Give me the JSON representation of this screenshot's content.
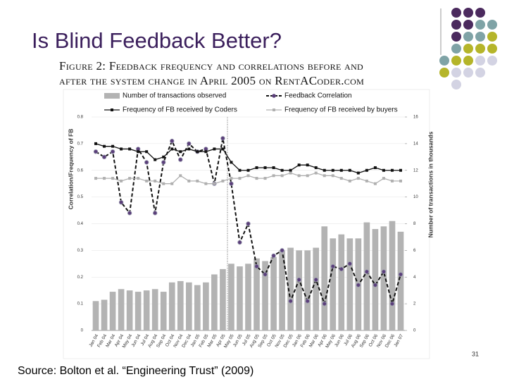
{
  "slide_title": "Is Blind Feedback Better?",
  "caption": [
    "Figure 2: Feedback frequency and correlations before and",
    "after the system change in April 2005 on RentACoder.com"
  ],
  "source": "Source: Bolton et al. “Engineering Trust” (2009)",
  "page_number": "31",
  "chart_data": {
    "type": "bar-line",
    "y_label": "Correlation/Frequency of FB",
    "y2_label": "Number of transactions in thousands",
    "categories": [
      "Jan 04",
      "Feb 04",
      "Mar 04",
      "Apr 04",
      "May 04",
      "Jun 04",
      "Jul 04",
      "Aug 04",
      "Sep 04",
      "Oct 04",
      "Nov 04",
      "Dec 04",
      "Jan 05",
      "Feb 05",
      "Mar 05",
      "Apr 05",
      "May 05",
      "Jun 05",
      "Jul 05",
      "Aug 05",
      "Sep 05",
      "Oct 05",
      "Nov 05",
      "Dec 05",
      "Jan 06",
      "Feb 06",
      "Mar 06",
      "Apr 06",
      "May 06",
      "Jun 06",
      "Jul 06",
      "Aug 06",
      "Sep 06",
      "Oct 06",
      "Nov 06",
      "Dec 06",
      "Jan 07"
    ],
    "series": [
      {
        "name": "Number of transactions observed",
        "type": "bar",
        "axis": "y2",
        "color": "#b3b3b3",
        "values": [
          2.2,
          2.3,
          2.9,
          3.1,
          3.0,
          2.9,
          3.0,
          3.1,
          2.9,
          3.6,
          3.7,
          3.6,
          3.4,
          3.6,
          4.2,
          4.6,
          5.0,
          4.8,
          5.0,
          5.4,
          5.2,
          5.5,
          6.0,
          6.2,
          6.0,
          6.0,
          6.2,
          7.8,
          6.9,
          7.2,
          6.9,
          6.9,
          8.1,
          7.6,
          7.8,
          8.2,
          7.4
        ]
      },
      {
        "name": "Feedback Correlation",
        "type": "line",
        "axis": "y",
        "color": "#111111",
        "marker": "circle",
        "marker_color": "#5b3f7a",
        "dashed": true,
        "values": [
          0.67,
          0.65,
          0.67,
          0.48,
          0.44,
          0.68,
          0.63,
          0.44,
          0.63,
          0.71,
          0.64,
          0.7,
          0.67,
          0.68,
          0.55,
          0.72,
          0.55,
          0.33,
          0.4,
          0.24,
          0.21,
          0.28,
          0.3,
          0.11,
          0.19,
          0.11,
          0.19,
          0.1,
          0.24,
          0.23,
          0.25,
          0.17,
          0.22,
          0.17,
          0.22,
          0.1,
          0.21
        ]
      },
      {
        "name": "Frequency of FB received by Coders",
        "type": "line",
        "axis": "y",
        "color": "#111111",
        "marker": "square",
        "values": [
          0.7,
          0.69,
          0.69,
          0.68,
          0.68,
          0.67,
          0.67,
          0.64,
          0.65,
          0.68,
          0.67,
          0.68,
          0.67,
          0.67,
          0.68,
          0.68,
          0.63,
          0.6,
          0.6,
          0.61,
          0.61,
          0.61,
          0.6,
          0.6,
          0.62,
          0.62,
          0.61,
          0.6,
          0.6,
          0.6,
          0.6,
          0.59,
          0.6,
          0.61,
          0.6,
          0.6,
          0.6
        ]
      },
      {
        "name": "Frequency of FB received by buyers",
        "type": "line",
        "axis": "y",
        "color": "#b0b0b0",
        "marker": "square",
        "values": [
          0.57,
          0.57,
          0.57,
          0.56,
          0.57,
          0.57,
          0.56,
          0.56,
          0.55,
          0.55,
          0.58,
          0.56,
          0.56,
          0.55,
          0.55,
          0.56,
          0.57,
          0.57,
          0.58,
          0.57,
          0.57,
          0.58,
          0.58,
          0.59,
          0.58,
          0.58,
          0.59,
          0.58,
          0.58,
          0.57,
          0.56,
          0.57,
          0.56,
          0.55,
          0.57,
          0.56,
          0.56
        ]
      }
    ],
    "ylim": [
      0,
      0.8
    ],
    "yticks": [
      0,
      0.1,
      0.2,
      0.3,
      0.4,
      0.5,
      0.6,
      0.7,
      0.8
    ],
    "y2lim": [
      0,
      16
    ],
    "y2ticks": [
      0,
      2,
      4,
      6,
      8,
      10,
      12,
      14,
      16
    ],
    "grid": true
  }
}
